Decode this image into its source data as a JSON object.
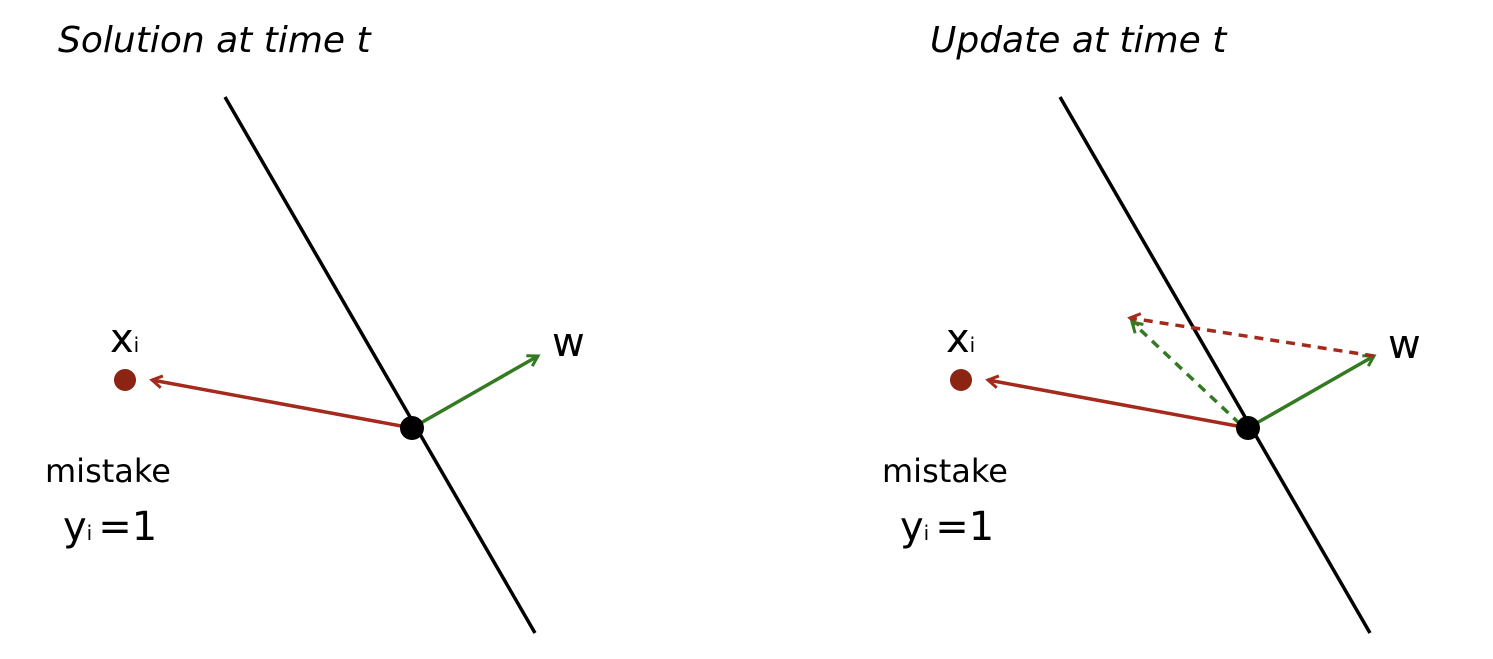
{
  "colors": {
    "boundary": "#000000",
    "mistake_vector": "#a32a1c",
    "weight_vector": "#337a22",
    "point": "#8c2414",
    "origin": "#000000"
  },
  "panels": [
    {
      "title": "Solution at time t",
      "x_label": "x",
      "x_subscript": "i",
      "w_label": "w",
      "mistake_label": "mistake",
      "y_label": "y",
      "y_subscript": "i",
      "y_value": "=1"
    },
    {
      "title": "Update at time t",
      "x_label": "x",
      "x_subscript": "i",
      "w_label": "w",
      "mistake_label": "mistake",
      "y_label": "y",
      "y_subscript": "i",
      "y_value": "=1"
    }
  ]
}
